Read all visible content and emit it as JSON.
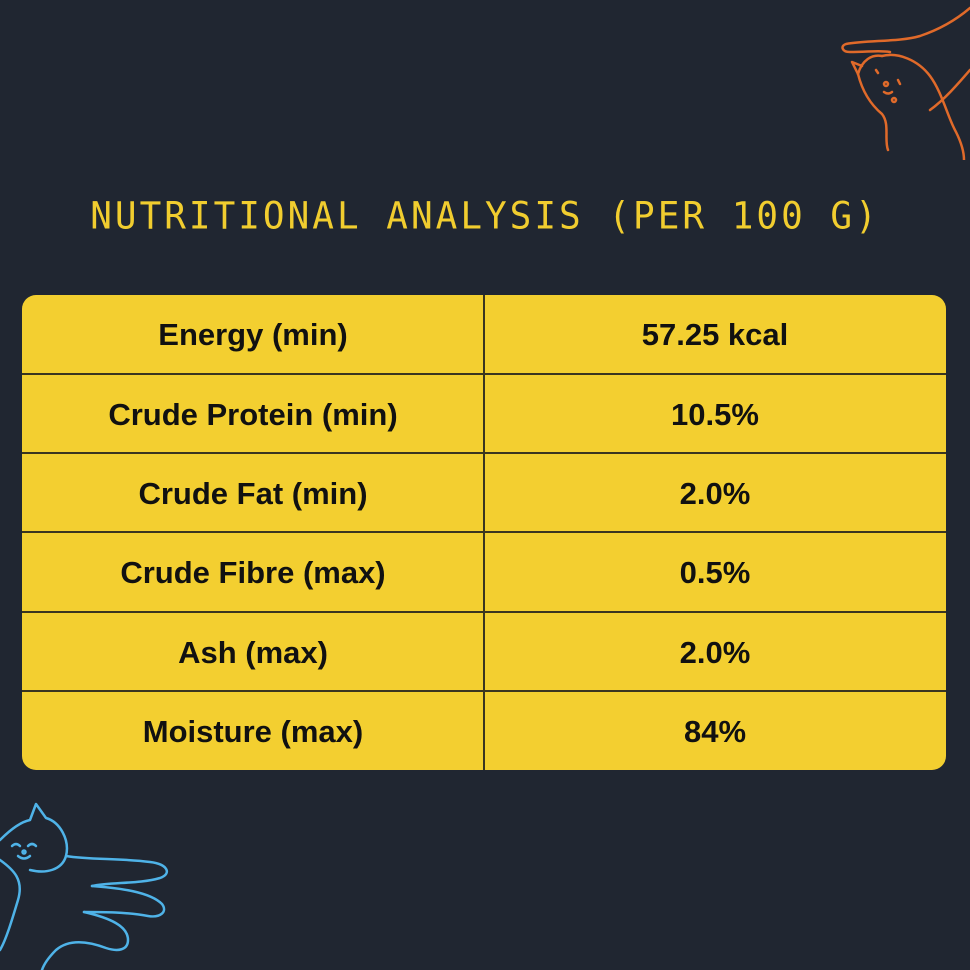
{
  "title": "Nutritional Analysis (per 100 g)",
  "rows": [
    {
      "label": "Energy (min)",
      "value": "57.25 kcal"
    },
    {
      "label": "Crude Protein (min)",
      "value": "10.5%"
    },
    {
      "label": "Crude Fat (min)",
      "value": "2.0%"
    },
    {
      "label": "Crude Fibre (max)",
      "value": "0.5%"
    },
    {
      "label": "Ash (max)",
      "value": "2.0%"
    },
    {
      "label": "Moisture (max)",
      "value": "84%"
    }
  ],
  "colors": {
    "background": "#202631",
    "accent": "#f3cf30",
    "cat_orange": "#e06a2a",
    "cat_blue": "#4fb3e8"
  },
  "icons": [
    "orange-cat-paw-icon",
    "blue-cat-paw-icon"
  ]
}
